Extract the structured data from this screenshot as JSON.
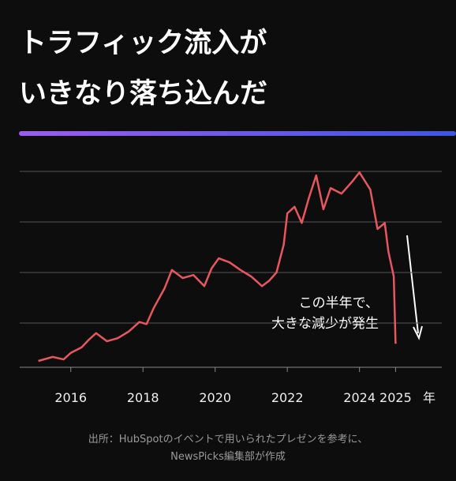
{
  "chart_data": {
    "type": "line",
    "title_lines": [
      "トラフィック流入が",
      "いきなり落ち込んだ"
    ],
    "annotation_lines": [
      "この半年で、",
      "大きな減少が発生"
    ],
    "x_unit": "年",
    "source_lines": [
      "出所：HubSpotのイベントで用いられたプレゼンを参考に、",
      "NewsPicks編集部が作成"
    ],
    "x": [
      2015.1,
      2015.5,
      2015.8,
      2016.0,
      2016.3,
      2016.5,
      2016.7,
      2017.0,
      2017.3,
      2017.6,
      2017.9,
      2018.1,
      2018.3,
      2018.6,
      2018.8,
      2019.1,
      2019.4,
      2019.7,
      2019.9,
      2020.1,
      2020.4,
      2020.7,
      2021.0,
      2021.3,
      2021.5,
      2021.7,
      2021.9,
      2022.0,
      2022.2,
      2022.4,
      2022.6,
      2022.8,
      2023.0,
      2023.2,
      2023.5,
      2023.8,
      2024.0,
      2024.3,
      2024.5,
      2024.7,
      2024.8,
      2024.95,
      2025.0
    ],
    "series": [
      {
        "color": "#e8575e",
        "values": [
          0.25,
          0.33,
          0.28,
          0.41,
          0.52,
          0.67,
          0.8,
          0.64,
          0.7,
          0.83,
          1.02,
          0.98,
          1.3,
          1.69,
          2.05,
          1.89,
          1.95,
          1.73,
          2.08,
          2.28,
          2.2,
          2.05,
          1.92,
          1.73,
          1.84,
          2.0,
          2.55,
          3.17,
          3.3,
          2.98,
          3.48,
          3.92,
          3.25,
          3.67,
          3.56,
          3.8,
          3.98,
          3.64,
          2.86,
          2.98,
          2.42,
          1.92,
          0.59
        ]
      }
    ],
    "xlim": [
      2015,
      2025.8
    ],
    "xticks": [
      2016,
      2018,
      2020,
      2022,
      2024,
      2025
    ],
    "ylim": [
      0.125,
      4
    ],
    "yticks": [
      1,
      2,
      3,
      4
    ],
    "grid": true
  }
}
